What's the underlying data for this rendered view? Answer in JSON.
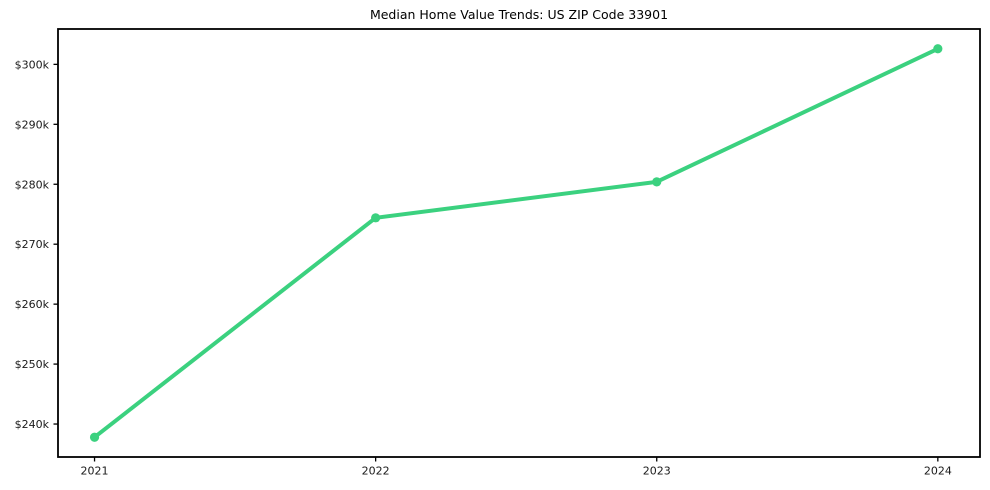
{
  "chart_data": {
    "type": "line",
    "title": "Median Home Value Trends: US ZIP Code 33901",
    "xlabel": "",
    "ylabel": "",
    "x": [
      2021,
      2022,
      2023,
      2024
    ],
    "x_tick_labels": [
      "2021",
      "2022",
      "2023",
      "2024"
    ],
    "series": [
      {
        "values": [
          237.8,
          274.4,
          280.4,
          302.6
        ],
        "unit": "thousand_usd"
      }
    ],
    "y_ticks": [
      240,
      250,
      260,
      270,
      280,
      290,
      300
    ],
    "y_tick_labels": [
      "$240k",
      "$250k",
      "$260k",
      "$270k",
      "$280k",
      "$290k",
      "$300k"
    ],
    "xlim": [
      2020.87,
      2024.15
    ],
    "ylim": [
      234.5,
      305.9
    ],
    "grid": false,
    "legend": "none"
  },
  "colors": {
    "line": "#3bd17f",
    "marker": "#3bd17f",
    "axis": "#000000",
    "tick_label": "#1a1a1a",
    "background": "#ffffff"
  }
}
